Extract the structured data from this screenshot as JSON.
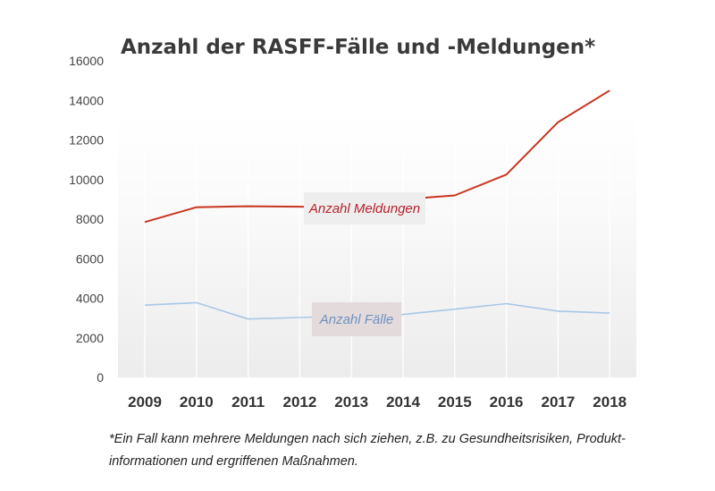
{
  "chart_data": {
    "type": "line",
    "title": "Anzahl der RASFF-Fälle und -Meldungen*",
    "categories": [
      "2009",
      "2010",
      "2011",
      "2012",
      "2013",
      "2014",
      "2015",
      "2016",
      "2017",
      "2018"
    ],
    "ylim": [
      0,
      16000
    ],
    "yticks": [
      "0",
      "2000",
      "4000",
      "6000",
      "8000",
      "10000",
      "12000",
      "14000",
      "16000"
    ],
    "grid": "vertical",
    "series": [
      {
        "name": "Anzahl Meldungen",
        "color": "#c8351f",
        "label_color": "#b8202a",
        "values": [
          7850,
          8600,
          8650,
          8630,
          8600,
          9000,
          9200,
          10250,
          12900,
          14500
        ]
      },
      {
        "name": "Anzahl Fälle",
        "color": "#a9c7e4",
        "label_color": "#6f92bf",
        "values": [
          3650,
          3780,
          2950,
          3030,
          3100,
          3180,
          3450,
          3730,
          3350,
          3250
        ]
      }
    ],
    "footnote": [
      "*Ein Fall kann mehrere Meldungen nach sich ziehen, z.B. zu Gesundheitsrisiken, Produkt-",
      "informationen und ergriffenen Maßnahmen."
    ]
  }
}
